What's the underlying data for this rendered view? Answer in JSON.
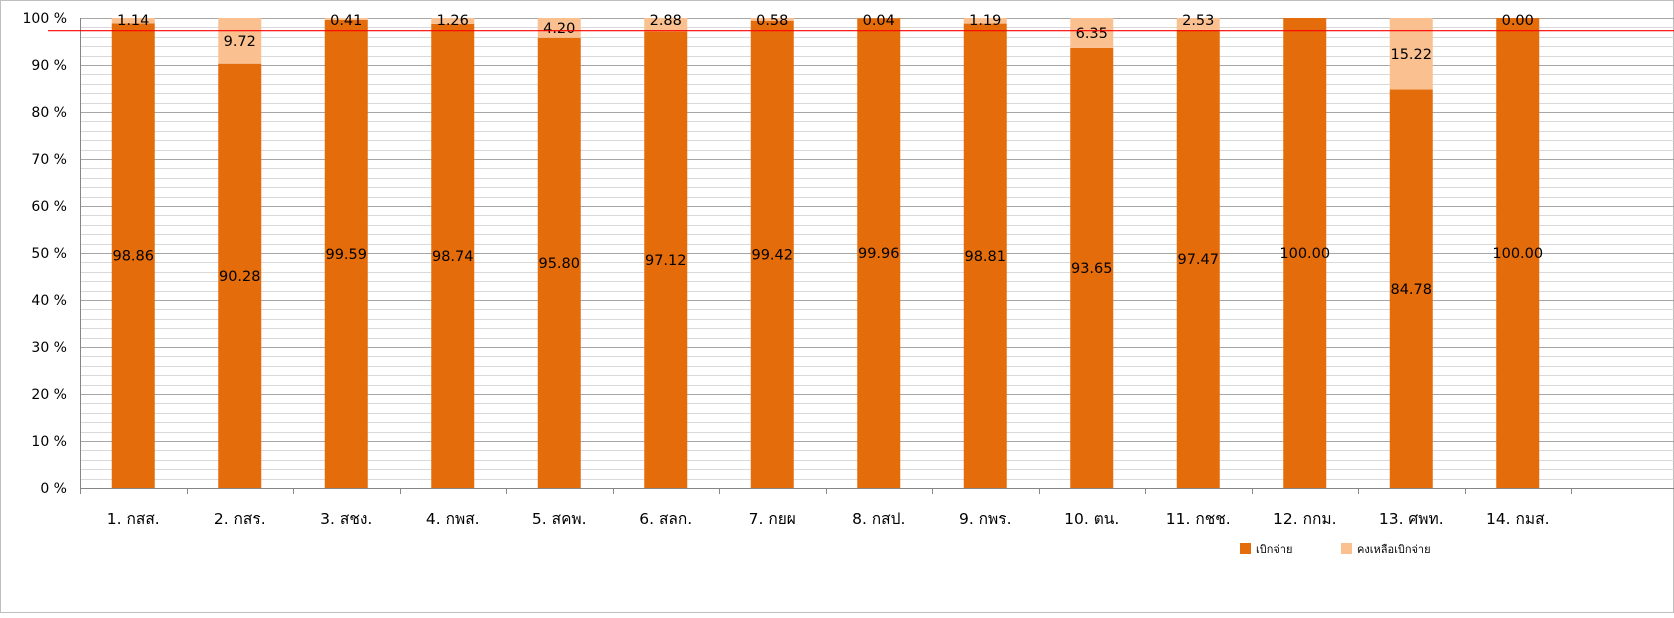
{
  "chart_data": {
    "type": "bar",
    "stacked": true,
    "percent_stacked": true,
    "categories": [
      "1. กสส.",
      "2. กสร.",
      "3. สชง.",
      "4. กพส.",
      "5. สคพ.",
      "6. สลก.",
      "7. กยผ",
      "8. กสป.",
      "9. กพร.",
      "10. ตน.",
      "11. กชช.",
      "12. กกม.",
      "13. ศพท.",
      "14. กมส."
    ],
    "series": [
      {
        "name": "เบิกจ่าย",
        "color": "#E46C0A",
        "values": [
          98.86,
          90.28,
          99.59,
          98.74,
          95.8,
          97.12,
          99.42,
          99.96,
          98.81,
          93.65,
          97.47,
          100.0,
          84.78,
          100.0
        ],
        "labels": [
          "98.86",
          "90.28",
          "99.59",
          "98.74",
          "95.80",
          "97.12",
          "99.42",
          "99.96",
          "98.81",
          "93.65",
          "97.47",
          "100.00",
          "84.78",
          "100.00"
        ]
      },
      {
        "name": "คงเหลือเบิกจ่าย",
        "color": "#FAC090",
        "values": [
          1.14,
          9.72,
          0.41,
          1.26,
          4.2,
          2.88,
          0.58,
          0.04,
          1.19,
          6.35,
          2.53,
          0.0,
          15.22,
          0.0
        ],
        "labels": [
          "1.14",
          "9.72",
          "0.41",
          "1.26",
          "4.20",
          "2.88",
          "0.58",
          "0.04",
          "1.19",
          "6.35",
          "2.53",
          "",
          "15.22",
          "0.00"
        ]
      }
    ],
    "ylim": [
      0,
      100
    ],
    "yticks": [
      "0 %",
      "10 %",
      "20 %",
      "30 %",
      "40 %",
      "50 %",
      "60 %",
      "70 %",
      "80 %",
      "90 %",
      "100 %"
    ],
    "target_line": {
      "value": 97.3,
      "color": "#FF0000"
    },
    "grid": true,
    "legend_position": "bottom-right",
    "title": "",
    "xlabel": "",
    "ylabel": ""
  }
}
